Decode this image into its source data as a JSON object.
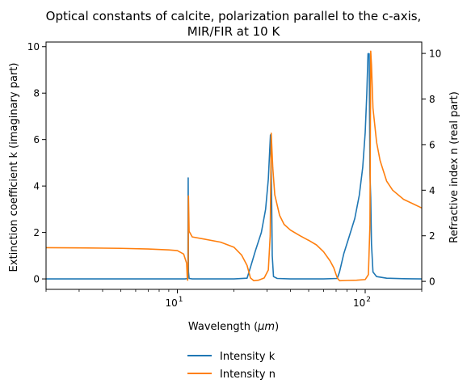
{
  "chart_data": {
    "type": "line",
    "title": "Optical constants of calcite, polarization parallel to the c-axis,",
    "subtitle": "MIR/FIR at 10 K",
    "xlabel": "Wavelength (",
    "xlabel_unit": "μm",
    "xlabel_close": ")",
    "ylabel_left": "Extinction coefficient k (imaginary part)",
    "ylabel_right": "Refractive index n (real part)",
    "x_scale": "log",
    "xlim": [
      2,
      200
    ],
    "ylim_left": [
      -0.45,
      10.2
    ],
    "ylim_right": [
      -0.35,
      10.5
    ],
    "x_ticks": [
      {
        "value": 10,
        "base": "10",
        "exp": "1"
      },
      {
        "value": 100,
        "base": "10",
        "exp": "2"
      }
    ],
    "y_ticks_left": [
      "0",
      "2",
      "4",
      "6",
      "8",
      "10"
    ],
    "y_ticks_right": [
      "0",
      "2",
      "4",
      "6",
      "8",
      "10"
    ],
    "grid": false,
    "legend_position": "bottom-center, below plot",
    "colors": {
      "k": "#1f77b4",
      "n": "#ff7f0e"
    },
    "series": [
      {
        "name": "Intensity k",
        "axis": "left",
        "color": "#1f77b4",
        "points": [
          [
            2.0,
            0.0
          ],
          [
            5.0,
            0.0
          ],
          [
            10.0,
            0.0
          ],
          [
            11.0,
            0.0
          ],
          [
            11.3,
            0.02
          ],
          [
            11.38,
            0.3
          ],
          [
            11.42,
            4.35
          ],
          [
            11.46,
            0.3
          ],
          [
            11.55,
            0.02
          ],
          [
            12.0,
            0.0
          ],
          [
            15.0,
            0.0
          ],
          [
            20.0,
            0.0
          ],
          [
            23.5,
            0.03
          ],
          [
            24.5,
            0.5
          ],
          [
            26.0,
            1.2
          ],
          [
            28.0,
            2.0
          ],
          [
            29.5,
            3.0
          ],
          [
            30.5,
            4.3
          ],
          [
            31.0,
            5.5
          ],
          [
            31.3,
            6.2
          ],
          [
            31.7,
            4.0
          ],
          [
            32.0,
            1.0
          ],
          [
            32.5,
            0.1
          ],
          [
            34.0,
            0.02
          ],
          [
            40.0,
            0.0
          ],
          [
            60.0,
            0.0
          ],
          [
            71.0,
            0.02
          ],
          [
            73.0,
            0.3
          ],
          [
            77.0,
            1.1
          ],
          [
            82.0,
            1.8
          ],
          [
            88.0,
            2.6
          ],
          [
            93.0,
            3.6
          ],
          [
            97.0,
            4.8
          ],
          [
            100.0,
            6.3
          ],
          [
            102.0,
            8.0
          ],
          [
            103.5,
            9.7
          ],
          [
            105.0,
            9.7
          ],
          [
            106.0,
            4.5
          ],
          [
            107.0,
            3.5
          ],
          [
            108.0,
            1.5
          ],
          [
            110.0,
            0.3
          ],
          [
            115.0,
            0.1
          ],
          [
            130.0,
            0.03
          ],
          [
            160.0,
            0.01
          ],
          [
            200.0,
            0.0
          ]
        ]
      },
      {
        "name": "Intensity n",
        "axis": "right",
        "color": "#ff7f0e",
        "points": [
          [
            2.0,
            1.48
          ],
          [
            3.0,
            1.47
          ],
          [
            5.0,
            1.45
          ],
          [
            7.0,
            1.42
          ],
          [
            9.0,
            1.38
          ],
          [
            10.0,
            1.35
          ],
          [
            10.8,
            1.2
          ],
          [
            11.2,
            0.8
          ],
          [
            11.3,
            0.1
          ],
          [
            11.35,
            0.05
          ],
          [
            11.42,
            1.0
          ],
          [
            11.46,
            3.75
          ],
          [
            11.55,
            2.2
          ],
          [
            12.0,
            1.95
          ],
          [
            14.0,
            1.85
          ],
          [
            17.0,
            1.72
          ],
          [
            20.0,
            1.5
          ],
          [
            22.0,
            1.15
          ],
          [
            23.5,
            0.7
          ],
          [
            24.5,
            0.15
          ],
          [
            25.5,
            0.03
          ],
          [
            27.0,
            0.05
          ],
          [
            29.0,
            0.15
          ],
          [
            30.5,
            0.5
          ],
          [
            31.2,
            2.0
          ],
          [
            31.6,
            6.5
          ],
          [
            32.2,
            5.0
          ],
          [
            33.0,
            3.8
          ],
          [
            35.0,
            2.9
          ],
          [
            37.0,
            2.5
          ],
          [
            40.0,
            2.25
          ],
          [
            45.0,
            2.0
          ],
          [
            50.0,
            1.8
          ],
          [
            55.0,
            1.6
          ],
          [
            60.0,
            1.3
          ],
          [
            65.0,
            0.9
          ],
          [
            68.0,
            0.6
          ],
          [
            71.0,
            0.15
          ],
          [
            73.0,
            0.03
          ],
          [
            80.0,
            0.04
          ],
          [
            90.0,
            0.05
          ],
          [
            100.0,
            0.08
          ],
          [
            104.0,
            0.3
          ],
          [
            106.0,
            2.5
          ],
          [
            107.0,
            10.1
          ],
          [
            108.0,
            9.5
          ],
          [
            110.0,
            7.6
          ],
          [
            115.0,
            6.1
          ],
          [
            120.0,
            5.3
          ],
          [
            130.0,
            4.4
          ],
          [
            140.0,
            4.0
          ],
          [
            160.0,
            3.6
          ],
          [
            180.0,
            3.4
          ],
          [
            200.0,
            3.22
          ]
        ]
      }
    ]
  }
}
